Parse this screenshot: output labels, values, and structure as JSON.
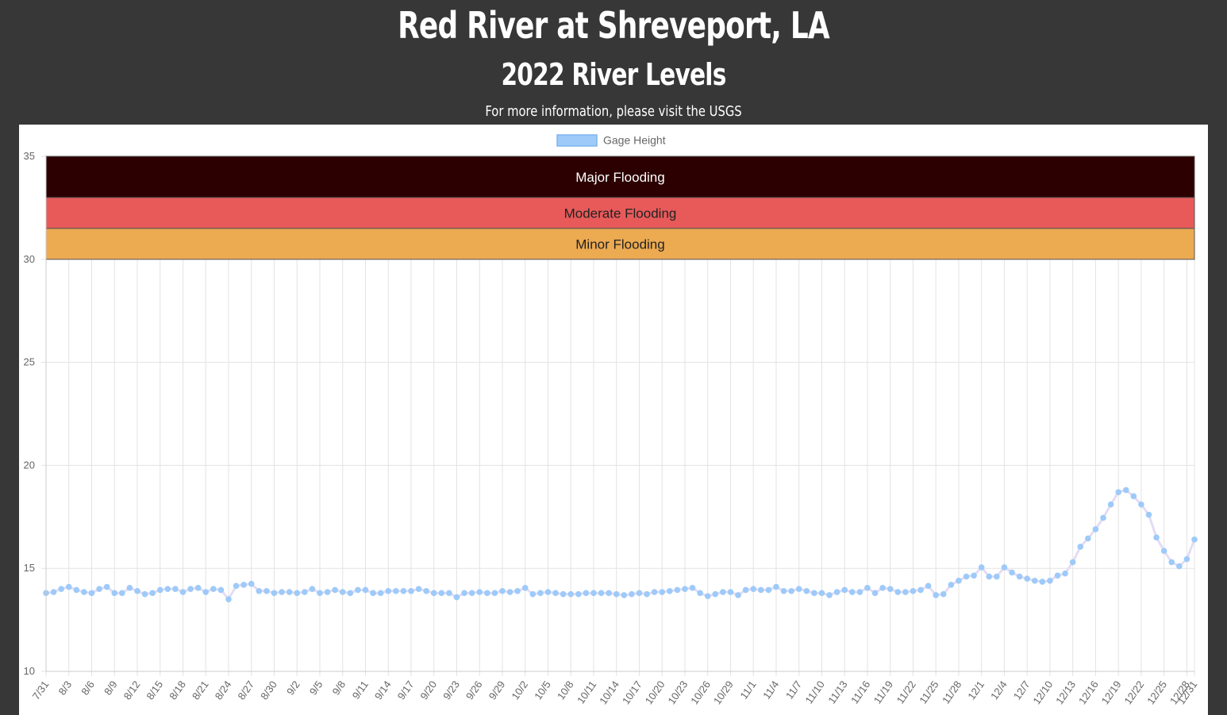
{
  "header": {
    "title": "Red River at Shreveport, LA",
    "subtitle": "2022 River Levels",
    "info_prefix": "For more information, please visit the ",
    "info_link": "USGS"
  },
  "colors": {
    "series_point": "#9ecaf9",
    "series_line": "#e4dcf4",
    "major": "#2c0000",
    "moderate": "#e85a5a",
    "minor": "#ecaa51",
    "grid": "#e3e3e3"
  },
  "chart_data": {
    "type": "line",
    "title": "",
    "xlabel": "",
    "ylabel": "",
    "ylim": [
      10,
      35
    ],
    "yticks": [
      10,
      15,
      20,
      25,
      30,
      35
    ],
    "grid": true,
    "legend": {
      "position": "top",
      "label": "Gage Height"
    },
    "bands": [
      {
        "label": "Major Flooding",
        "from": 33,
        "to": 35,
        "color": "#2c0000",
        "text_color": "#ffffff"
      },
      {
        "label": "Moderate Flooding",
        "from": 31.5,
        "to": 33,
        "color": "#e85a5a",
        "text_color": "#222222"
      },
      {
        "label": "Minor Flooding",
        "from": 30,
        "to": 31.5,
        "color": "#ecaa51",
        "text_color": "#222222"
      }
    ],
    "x_tick_labels": [
      "7/31",
      "8/3",
      "8/6",
      "8/9",
      "8/12",
      "8/15",
      "8/18",
      "8/21",
      "8/24",
      "8/27",
      "8/30",
      "9/2",
      "9/5",
      "9/8",
      "9/11",
      "9/14",
      "9/17",
      "9/20",
      "9/23",
      "9/26",
      "9/29",
      "10/2",
      "10/5",
      "10/8",
      "10/11",
      "10/14",
      "10/17",
      "10/20",
      "10/23",
      "10/26",
      "10/29",
      "11/1",
      "11/4",
      "11/7",
      "11/10",
      "11/13",
      "11/16",
      "11/19",
      "11/22",
      "11/25",
      "11/28",
      "12/1",
      "12/4",
      "12/7",
      "12/10",
      "12/13",
      "12/16",
      "12/19",
      "12/22",
      "12/25",
      "12/28",
      "12/31"
    ],
    "series": [
      {
        "name": "Gage Height",
        "start_date": "7/31",
        "end_date": "12/31",
        "values": [
          13.8,
          13.85,
          14.0,
          14.1,
          13.95,
          13.85,
          13.8,
          14.0,
          14.1,
          13.8,
          13.8,
          14.05,
          13.9,
          13.75,
          13.8,
          13.95,
          14.0,
          14.0,
          13.85,
          14.0,
          14.05,
          13.85,
          14.0,
          13.95,
          13.5,
          14.15,
          14.2,
          14.25,
          13.9,
          13.9,
          13.8,
          13.85,
          13.85,
          13.8,
          13.85,
          14.0,
          13.8,
          13.85,
          13.95,
          13.85,
          13.8,
          13.95,
          13.95,
          13.8,
          13.8,
          13.9,
          13.9,
          13.9,
          13.9,
          14.0,
          13.9,
          13.8,
          13.8,
          13.8,
          13.6,
          13.8,
          13.8,
          13.85,
          13.8,
          13.8,
          13.9,
          13.85,
          13.9,
          14.05,
          13.75,
          13.8,
          13.85,
          13.8,
          13.75,
          13.75,
          13.75,
          13.8,
          13.8,
          13.8,
          13.8,
          13.75,
          13.7,
          13.75,
          13.8,
          13.75,
          13.85,
          13.85,
          13.9,
          13.95,
          14.0,
          14.05,
          13.8,
          13.65,
          13.75,
          13.85,
          13.85,
          13.7,
          13.95,
          14.0,
          13.95,
          13.95,
          14.1,
          13.9,
          13.9,
          14.0,
          13.9,
          13.8,
          13.8,
          13.7,
          13.85,
          13.95,
          13.85,
          13.85,
          14.05,
          13.8,
          14.05,
          14.0,
          13.85,
          13.85,
          13.9,
          13.95,
          14.15,
          13.7,
          13.75,
          14.2,
          14.4,
          14.6,
          14.65,
          15.05,
          14.6,
          14.6,
          15.05,
          14.8,
          14.6,
          14.5,
          14.4,
          14.35,
          14.4,
          14.65,
          14.75,
          15.3,
          16.05,
          16.45,
          16.9,
          17.45,
          18.1,
          18.7,
          18.8,
          18.5,
          18.1,
          17.6,
          16.5,
          15.85,
          15.3,
          15.1,
          15.45,
          16.4
        ]
      }
    ]
  }
}
